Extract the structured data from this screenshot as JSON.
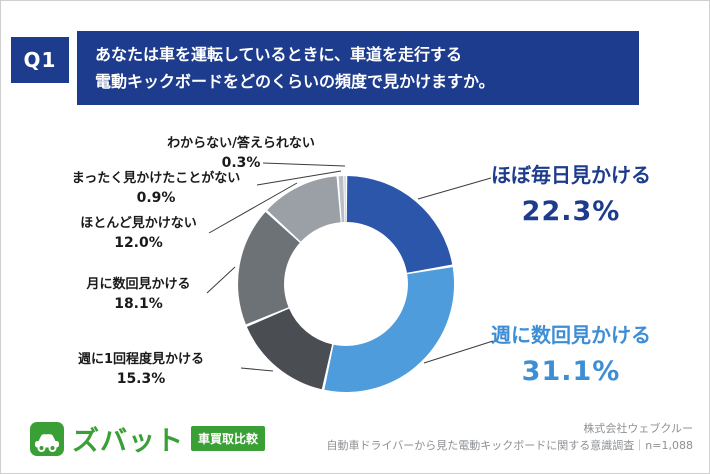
{
  "header": {
    "q_label": "Q1",
    "question_line1": "あなたは車を運転しているときに、車道を走行する",
    "question_line2": "電動キックボードをどのくらいの頻度で見かけますか。"
  },
  "chart_data": {
    "type": "pie",
    "subtype": "donut",
    "start_angle_deg": 0,
    "direction": "clockwise",
    "total": 100,
    "segments": [
      {
        "label": "ほぼ毎日見かける",
        "value": 22.3,
        "pct": "22.3%",
        "color": "#2b56aa",
        "emphasis": true
      },
      {
        "label": "週に数回見かける",
        "value": 31.1,
        "pct": "31.1%",
        "color": "#4f9cdc",
        "emphasis": true
      },
      {
        "label": "週に1回程度見かける",
        "value": 15.3,
        "pct": "15.3%",
        "color": "#4a4e53",
        "emphasis": false
      },
      {
        "label": "月に数回見かける",
        "value": 18.1,
        "pct": "18.1%",
        "color": "#6d7277",
        "emphasis": false
      },
      {
        "label": "ほとんど見かけない",
        "value": 12.0,
        "pct": "12.0%",
        "color": "#9aa0a5",
        "emphasis": false
      },
      {
        "label": "まったく見かけたことがない",
        "value": 0.9,
        "pct": "0.9%",
        "color": "#b9bfc4",
        "emphasis": false
      },
      {
        "label": "わからない/答えられない",
        "value": 0.3,
        "pct": "0.3%",
        "color": "#d3d7da",
        "emphasis": false
      }
    ]
  },
  "footer": {
    "brand": "ズバット",
    "brand_badge": "車買取比較",
    "company": "株式会社ウェブクルー",
    "survey_note": "自動車ドライバーから見た電動キックボードに関する意識調査｜n=1,088"
  },
  "colors": {
    "navy": "#1e3c8d",
    "highlight_blue": "#3e8ed5",
    "brand_green": "#3aa035"
  }
}
